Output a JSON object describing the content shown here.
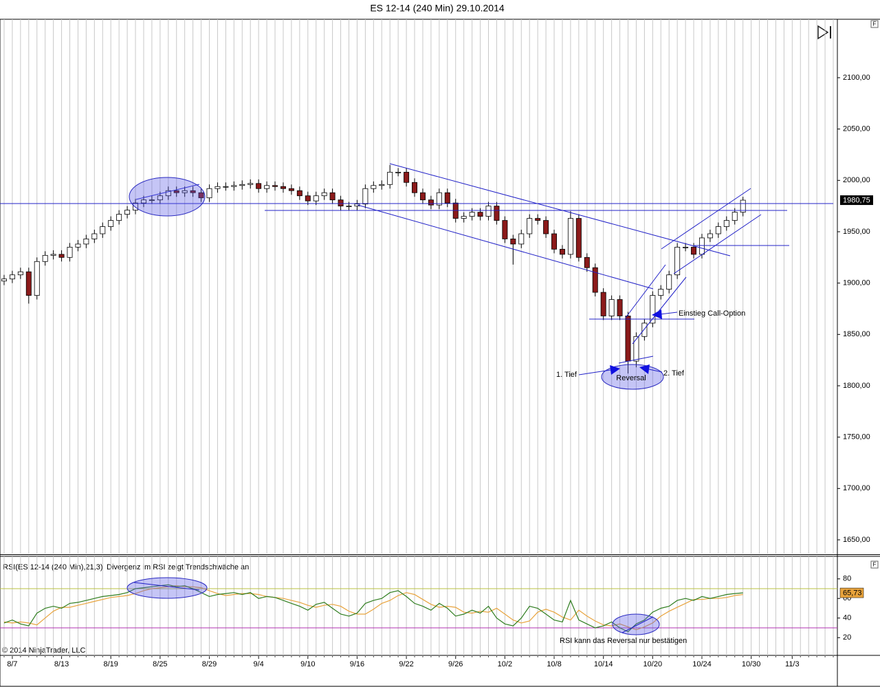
{
  "button_label": "F",
  "copyright": "© 2014 NinjaTrader, LLC",
  "chart_data": [
    {
      "type": "candlestick",
      "title": "ES 12-14 (240 Min)  29.10.2014",
      "up_color": "#ffffff",
      "down_color": "#8b1a1a",
      "wick_color": "#000000",
      "xlim": [
        -1.5,
        100.5
      ],
      "ylim": [
        1636.6,
        2156.9
      ],
      "xticks": [
        {
          "value": 0,
          "label": "8/7"
        },
        {
          "value": 6,
          "label": "8/13"
        },
        {
          "value": 12,
          "label": "8/19"
        },
        {
          "value": 18,
          "label": "8/25"
        },
        {
          "value": 24,
          "label": "8/29"
        },
        {
          "value": 30,
          "label": "9/4"
        },
        {
          "value": 36,
          "label": "9/10"
        },
        {
          "value": 42,
          "label": "9/16"
        },
        {
          "value": 48,
          "label": "9/22"
        },
        {
          "value": 54,
          "label": "9/26"
        },
        {
          "value": 60,
          "label": "10/2"
        },
        {
          "value": 66,
          "label": "10/8"
        },
        {
          "value": 72,
          "label": "10/14"
        },
        {
          "value": 78,
          "label": "10/20"
        },
        {
          "value": 84,
          "label": "10/24"
        },
        {
          "value": 90,
          "label": "10/30"
        },
        {
          "value": 95,
          "label": "11/3"
        }
      ],
      "xgrid": [
        -1,
        0,
        1,
        2,
        3,
        4,
        5,
        6,
        7,
        8,
        9,
        10,
        11,
        12,
        13,
        14,
        15,
        16,
        17,
        18,
        19,
        20,
        21,
        22,
        23,
        24,
        25,
        26,
        27,
        28,
        29,
        30,
        31,
        32,
        33,
        34,
        35,
        36,
        37,
        38,
        39,
        40,
        41,
        42,
        43,
        44,
        45,
        46,
        47,
        48,
        49,
        50,
        51,
        52,
        53,
        54,
        55,
        56,
        57,
        58,
        59,
        60,
        61,
        62,
        63,
        64,
        65,
        66,
        67,
        68,
        69,
        70,
        71,
        72,
        73,
        74,
        75,
        76,
        77,
        78,
        79,
        80,
        81,
        82,
        83,
        84,
        85,
        86,
        87,
        88,
        89,
        90,
        91,
        92,
        93,
        94,
        95,
        96,
        97,
        98,
        99,
        100
      ],
      "yticks": [
        {
          "value": 2100,
          "label": "2100,00"
        },
        {
          "value": 2050,
          "label": "2050,00"
        },
        {
          "value": 2000,
          "label": "2000,00"
        },
        {
          "value": 1950,
          "label": "1950,00"
        },
        {
          "value": 1900,
          "label": "1900,00"
        },
        {
          "value": 1850,
          "label": "1850,00"
        },
        {
          "value": 1800,
          "label": "1800,00"
        },
        {
          "value": 1750,
          "label": "1750,00"
        },
        {
          "value": 1700,
          "label": "1700,00"
        },
        {
          "value": 1650,
          "label": "1650,00"
        }
      ],
      "x": [
        -1,
        0,
        1,
        2,
        3,
        4,
        5,
        6,
        7,
        8,
        9,
        10,
        11,
        12,
        13,
        14,
        15,
        16,
        17,
        18,
        19,
        20,
        21,
        22,
        23,
        24,
        25,
        26,
        27,
        28,
        29,
        30,
        31,
        32,
        33,
        34,
        35,
        36,
        37,
        38,
        39,
        40,
        41,
        42,
        43,
        44,
        45,
        46,
        47,
        48,
        49,
        50,
        51,
        52,
        53,
        54,
        55,
        56,
        57,
        58,
        59,
        60,
        61,
        62,
        63,
        64,
        65,
        66,
        67,
        68,
        69,
        70,
        71,
        72,
        73,
        74,
        75,
        76,
        77,
        78,
        79,
        80,
        81,
        82,
        83,
        84,
        85,
        86,
        87,
        88,
        89
      ],
      "open": [
        1902,
        1904,
        1908,
        1911,
        1888,
        1921,
        1927,
        1928,
        1925,
        1935,
        1938,
        1943,
        1948,
        1955,
        1961,
        1967,
        1971,
        1978,
        1981,
        1981,
        1985,
        1990,
        1988,
        1990,
        1988,
        1983,
        1992,
        1994,
        1994,
        1995,
        1996,
        1997,
        1992,
        1995,
        1994,
        1992,
        1990,
        1985,
        1980,
        1985,
        1988,
        1981,
        1975,
        1975,
        1977,
        1992,
        1995,
        1996,
        2008,
        2008,
        1998,
        1988,
        1981,
        1976,
        1988,
        1978,
        1963,
        1965,
        1969,
        1965,
        1975,
        1961,
        1943,
        1938,
        1948,
        1963,
        1961,
        1948,
        1933,
        1928,
        1963,
        1925,
        1915,
        1891,
        1868,
        1884,
        1868,
        1824,
        1848,
        1861,
        1888,
        1894,
        1908,
        1935,
        1935,
        1928,
        1944,
        1948,
        1955,
        1961,
        1969
      ],
      "high": [
        1908,
        1912,
        1915,
        1915,
        1925,
        1931,
        1932,
        1932,
        1939,
        1942,
        1947,
        1952,
        1959,
        1965,
        1971,
        1975,
        1982,
        1985,
        1985,
        1989,
        1994,
        1994,
        1994,
        1994,
        1992,
        1996,
        1998,
        1998,
        1999,
        2000,
        2001,
        2001,
        1999,
        1999,
        1998,
        1996,
        1994,
        1989,
        1989,
        1992,
        1992,
        1985,
        1979,
        1981,
        1996,
        1999,
        2000,
        2015,
        2012,
        2012,
        2002,
        1992,
        1985,
        1992,
        1992,
        1982,
        1969,
        1973,
        1973,
        1979,
        1979,
        1965,
        1947,
        1952,
        1967,
        1967,
        1965,
        1952,
        1937,
        1970,
        1967,
        1929,
        1919,
        1895,
        1888,
        1888,
        1872,
        1852,
        1865,
        1892,
        1898,
        1912,
        1939,
        1939,
        1939,
        1948,
        1952,
        1959,
        1965,
        1973,
        1984
      ],
      "low": [
        1898,
        1900,
        1904,
        1880,
        1884,
        1917,
        1923,
        1921,
        1921,
        1931,
        1934,
        1939,
        1944,
        1951,
        1957,
        1963,
        1967,
        1974,
        1977,
        1977,
        1981,
        1984,
        1984,
        1984,
        1979,
        1979,
        1988,
        1990,
        1990,
        1991,
        1992,
        1988,
        1988,
        1990,
        1988,
        1986,
        1981,
        1976,
        1976,
        1981,
        1977,
        1971,
        1971,
        1971,
        1973,
        1988,
        1991,
        1992,
        2004,
        1994,
        1984,
        1977,
        1972,
        1972,
        1974,
        1959,
        1959,
        1961,
        1961,
        1961,
        1957,
        1939,
        1918,
        1934,
        1944,
        1957,
        1944,
        1929,
        1924,
        1924,
        1921,
        1911,
        1887,
        1864,
        1864,
        1864,
        1812,
        1818,
        1844,
        1857,
        1884,
        1890,
        1904,
        1931,
        1924,
        1924,
        1940,
        1944,
        1951,
        1957,
        1965
      ],
      "close": [
        1904,
        1908,
        1911,
        1888,
        1921,
        1927,
        1928,
        1925,
        1935,
        1938,
        1943,
        1948,
        1955,
        1961,
        1967,
        1971,
        1978,
        1981,
        1981,
        1985,
        1990,
        1988,
        1990,
        1988,
        1983,
        1992,
        1994,
        1994,
        1995,
        1996,
        1997,
        1992,
        1995,
        1994,
        1992,
        1990,
        1985,
        1980,
        1985,
        1988,
        1981,
        1975,
        1975,
        1977,
        1992,
        1995,
        1996,
        2008,
        2008,
        1998,
        1988,
        1981,
        1976,
        1988,
        1978,
        1963,
        1965,
        1969,
        1965,
        1975,
        1961,
        1943,
        1938,
        1948,
        1963,
        1961,
        1948,
        1933,
        1928,
        1963,
        1925,
        1915,
        1891,
        1868,
        1884,
        1868,
        1824,
        1848,
        1861,
        1888,
        1894,
        1908,
        1935,
        1935,
        1928,
        1944,
        1948,
        1955,
        1961,
        1969,
        1980.75
      ],
      "last_label": "1980,75",
      "last_label_color": "#000000",
      "annotations": [
        "Einstieg Call-Option",
        "1. Tief",
        "2. Tief",
        "Reversal"
      ]
    },
    {
      "type": "line",
      "title": "RSI(ES 12-14 (240 Min),21,3)",
      "xlim": [
        -1.5,
        100.5
      ],
      "ylim": [
        1.9,
        103
      ],
      "yticks": [
        80,
        60,
        40,
        20
      ],
      "hlines": [
        {
          "value": 70,
          "color": "#b8c040"
        },
        {
          "value": 30,
          "color": "#b030b0"
        }
      ],
      "x": [
        -1,
        0,
        1,
        2,
        3,
        4,
        5,
        6,
        7,
        8,
        9,
        10,
        11,
        12,
        13,
        14,
        15,
        16,
        17,
        18,
        19,
        20,
        21,
        22,
        23,
        24,
        25,
        26,
        27,
        28,
        29,
        30,
        31,
        32,
        33,
        34,
        35,
        36,
        37,
        38,
        39,
        40,
        41,
        42,
        43,
        44,
        45,
        46,
        47,
        48,
        49,
        50,
        51,
        52,
        53,
        54,
        55,
        56,
        57,
        58,
        59,
        60,
        61,
        62,
        63,
        64,
        65,
        66,
        67,
        68,
        69,
        70,
        71,
        72,
        73,
        74,
        75,
        76,
        77,
        78,
        79,
        80,
        81,
        82,
        83,
        84,
        85,
        86,
        87,
        88,
        89
      ],
      "series": [
        {
          "color": "#e8a33c",
          "values": [
            36,
            35,
            36,
            35,
            33,
            40,
            47,
            51,
            51,
            53,
            55,
            57,
            59,
            61,
            62,
            63,
            65,
            68,
            70,
            71,
            72,
            73,
            72,
            72,
            71,
            68,
            65,
            63,
            64,
            65,
            65,
            64,
            62,
            61,
            60,
            58,
            56,
            53,
            51,
            53,
            54,
            52,
            47,
            44,
            44,
            49,
            55,
            58,
            63,
            66,
            64,
            59,
            54,
            51,
            52,
            51,
            46,
            45,
            47,
            46,
            50,
            44,
            38,
            35,
            37,
            46,
            49,
            46,
            41,
            38,
            48,
            42,
            37,
            33,
            32,
            34,
            31,
            28,
            31,
            35,
            42,
            47,
            51,
            55,
            59,
            59,
            60,
            60,
            61,
            63,
            64
          ]
        },
        {
          "color": "#2e7d1e",
          "values": [
            35,
            38,
            34,
            32,
            45,
            50,
            52,
            50,
            55,
            56,
            58,
            60,
            62,
            63,
            64,
            66,
            70,
            71,
            72,
            73,
            74,
            72,
            73,
            70,
            66,
            62,
            64,
            65,
            66,
            64,
            66,
            60,
            62,
            61,
            58,
            55,
            52,
            48,
            54,
            56,
            50,
            44,
            42,
            45,
            55,
            58,
            60,
            66,
            68,
            62,
            55,
            52,
            48,
            55,
            50,
            42,
            44,
            48,
            45,
            52,
            40,
            34,
            32,
            40,
            52,
            50,
            44,
            38,
            36,
            58,
            38,
            34,
            30,
            32,
            36,
            30,
            26,
            34,
            38,
            46,
            50,
            52,
            58,
            60,
            58,
            62,
            60,
            62,
            64,
            65,
            65.73
          ]
        }
      ],
      "last_label": "65,73",
      "last_label_color": "#e8a33c",
      "annotations": [
        "Divergenz im RSI zeigt Trendschwäche an",
        "RSI kann das Reversal nur bestätigen"
      ]
    }
  ]
}
